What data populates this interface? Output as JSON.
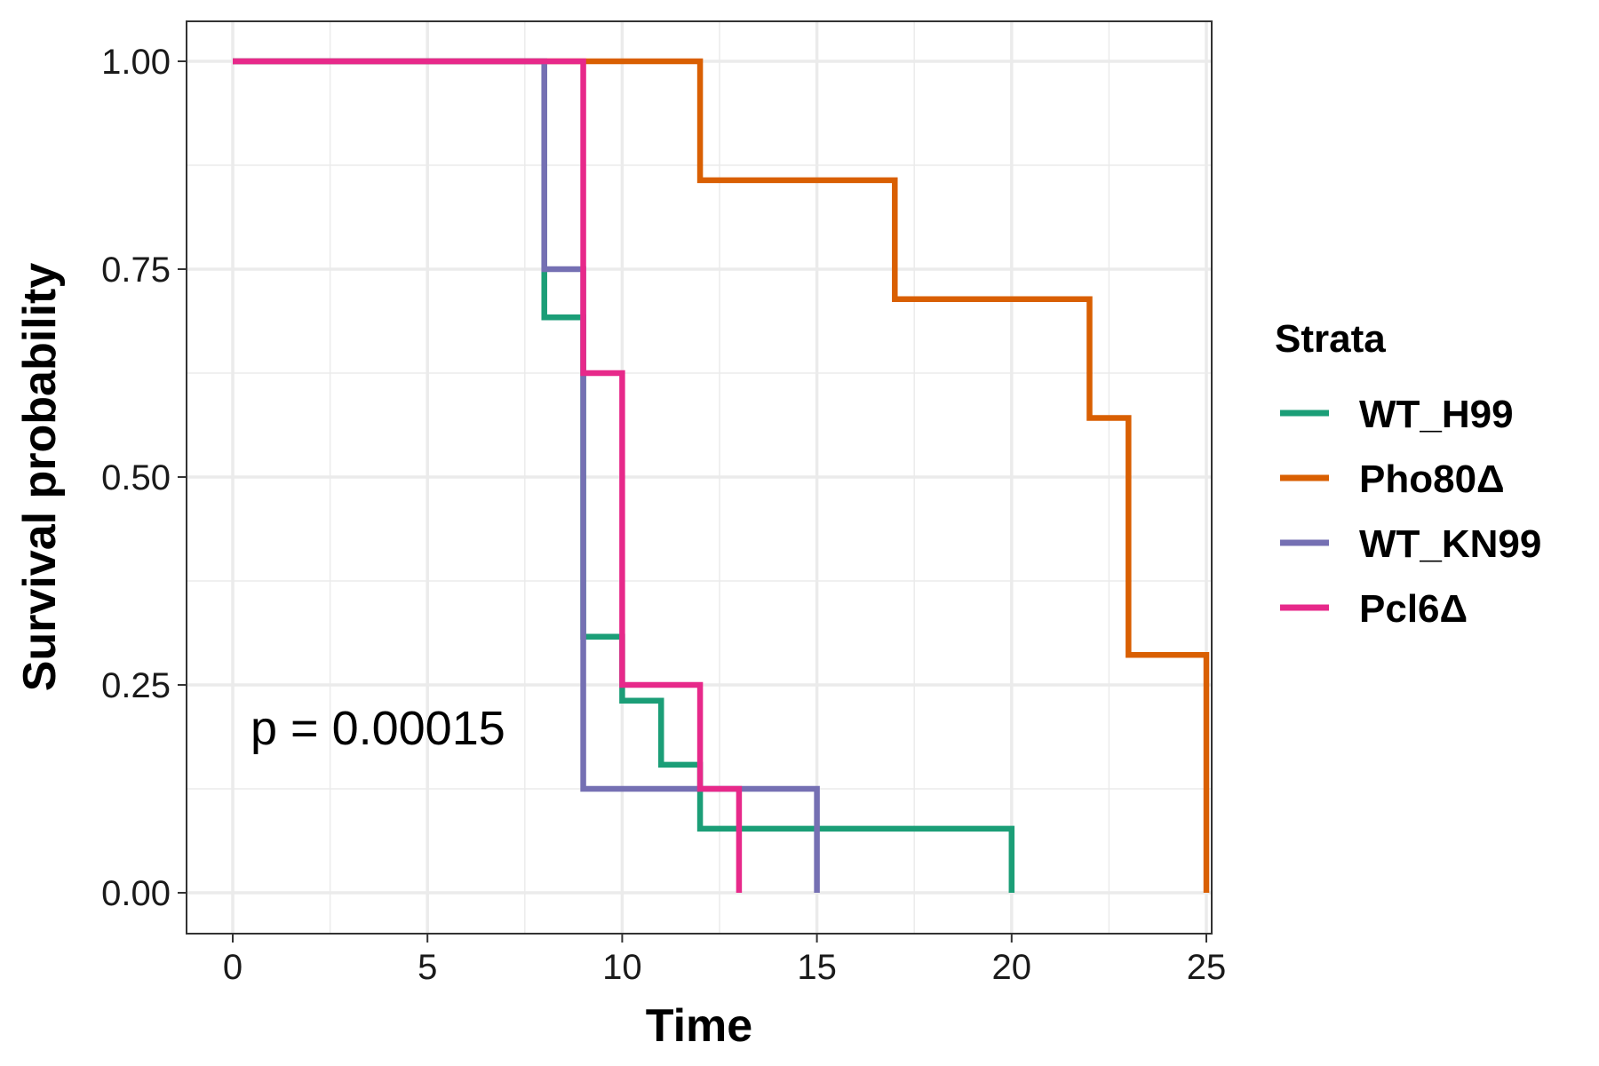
{
  "chart_data": {
    "type": "line",
    "style": "step",
    "xlabel": "Time",
    "ylabel": "Survival probability",
    "xlim": [
      0,
      25
    ],
    "ylim": [
      0,
      1
    ],
    "x_ticks": [
      "0",
      "5",
      "10",
      "15",
      "20",
      "25"
    ],
    "y_ticks": [
      "0.00",
      "0.25",
      "0.50",
      "0.75",
      "1.00"
    ],
    "grid": true,
    "legend_title": "Strata",
    "legend_position": "right",
    "annotation": "p = 0.00015",
    "series": [
      {
        "name": "WT_H99",
        "color": "#1b9e77",
        "x": [
          0,
          8,
          9,
          10,
          11,
          12,
          20
        ],
        "y": [
          1.0,
          0.692,
          0.308,
          0.231,
          0.154,
          0.077,
          0.0
        ]
      },
      {
        "name": "Pho80Δ",
        "color": "#d95f02",
        "x": [
          0,
          12,
          17,
          22,
          23,
          25
        ],
        "y": [
          1.0,
          0.857,
          0.714,
          0.571,
          0.286,
          0.0
        ]
      },
      {
        "name": "WT_KN99",
        "color": "#7570b3",
        "x": [
          0,
          8,
          9,
          15
        ],
        "y": [
          1.0,
          0.75,
          0.125,
          0.0
        ]
      },
      {
        "name": "Pcl6Δ",
        "color": "#e7298a",
        "x": [
          0,
          9,
          10,
          12,
          13
        ],
        "y": [
          1.0,
          0.625,
          0.25,
          0.125,
          0.0
        ]
      }
    ]
  }
}
